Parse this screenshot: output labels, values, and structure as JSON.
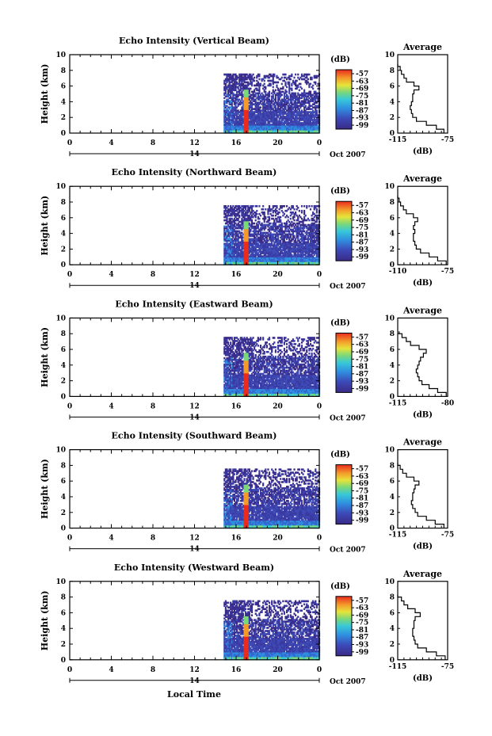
{
  "figure": {
    "xlabel": "Local Time",
    "date_label": "Oct 2007",
    "day_label": "14",
    "average_title": "Average",
    "average_xlabel": "(dB)",
    "colorbar_label": "(dB)"
  },
  "chart_data": [
    {
      "type": "heatmap",
      "title": "Echo Intensity (Vertical Beam)",
      "ylabel": "Height (km)",
      "xlim": [
        0,
        24
      ],
      "ylim": [
        0,
        10
      ],
      "x_ticks": [
        "0",
        "4",
        "8",
        "12",
        "16",
        "20",
        "0"
      ],
      "y_ticks": [
        "0",
        "2",
        "4",
        "6",
        "8",
        "10"
      ],
      "data_x_range": [
        14.8,
        24
      ],
      "colorbar_ticks": [
        "-57",
        "-63",
        "-69",
        "-75",
        "-81",
        "-87",
        "-93",
        "-99"
      ],
      "strong_echo_time": 16.9,
      "average": {
        "xlim": [
          -115,
          -75
        ],
        "x_ticks": [
          "-115",
          "-75"
        ],
        "height": [
          0,
          0.5,
          1,
          1.5,
          2,
          2.5,
          3,
          3.5,
          4,
          4.5,
          5,
          5.5,
          6,
          6.5,
          7,
          7.5,
          8,
          8.5
        ],
        "db": [
          -78,
          -84,
          -92,
          -100,
          -103,
          -104,
          -105,
          -104,
          -103,
          -103,
          -102,
          -98,
          -102,
          -108,
          -110,
          -112,
          -113,
          -115
        ]
      }
    },
    {
      "type": "heatmap",
      "title": "Echo Intensity (Northward Beam)",
      "ylabel": "Height (km)",
      "xlim": [
        0,
        24
      ],
      "ylim": [
        0,
        10
      ],
      "x_ticks": [
        "0",
        "4",
        "8",
        "12",
        "16",
        "20",
        "0"
      ],
      "y_ticks": [
        "0",
        "2",
        "4",
        "6",
        "8",
        "10"
      ],
      "data_x_range": [
        14.8,
        24
      ],
      "colorbar_ticks": [
        "-57",
        "-63",
        "-69",
        "-75",
        "-81",
        "-87",
        "-93",
        "-99"
      ],
      "strong_echo_time": 16.9,
      "average": {
        "xlim": [
          -110,
          -75
        ],
        "x_ticks": [
          "-110",
          "-75"
        ],
        "height": [
          0,
          0.5,
          1,
          1.5,
          2,
          2.5,
          3,
          3.5,
          4,
          4.5,
          5,
          5.5,
          6,
          6.5,
          7,
          7.5,
          8,
          8.5
        ],
        "db": [
          -76,
          -82,
          -88,
          -94,
          -97,
          -98,
          -99,
          -99,
          -98,
          -99,
          -98,
          -96,
          -99,
          -104,
          -106,
          -108,
          -109,
          -110
        ]
      }
    },
    {
      "type": "heatmap",
      "title": "Echo Intensity (Eastward Beam)",
      "ylabel": "Height (km)",
      "xlim": [
        0,
        24
      ],
      "ylim": [
        0,
        10
      ],
      "x_ticks": [
        "0",
        "4",
        "8",
        "12",
        "16",
        "20",
        "0"
      ],
      "y_ticks": [
        "0",
        "2",
        "4",
        "6",
        "8",
        "10"
      ],
      "data_x_range": [
        14.8,
        24
      ],
      "colorbar_ticks": [
        "-57",
        "-63",
        "-69",
        "-75",
        "-81",
        "-87",
        "-93",
        "-99"
      ],
      "strong_echo_time": 16.9,
      "average": {
        "xlim": [
          -115,
          -80
        ],
        "x_ticks": [
          "-115",
          "-80"
        ],
        "height": [
          0,
          0.5,
          1,
          1.5,
          2,
          2.5,
          3,
          3.5,
          4,
          4.5,
          5,
          5.5,
          6,
          6.5,
          7,
          7.5,
          8
        ],
        "db": [
          -81,
          -87,
          -93,
          -98,
          -100,
          -101,
          -102,
          -101,
          -100,
          -99,
          -97,
          -95,
          -100,
          -106,
          -109,
          -112,
          -114
        ]
      }
    },
    {
      "type": "heatmap",
      "title": "Echo Intensity (Southward Beam)",
      "ylabel": "Height (km)",
      "xlim": [
        0,
        24
      ],
      "ylim": [
        0,
        10
      ],
      "x_ticks": [
        "0",
        "4",
        "8",
        "12",
        "16",
        "20",
        "0"
      ],
      "y_ticks": [
        "0",
        "2",
        "4",
        "6",
        "8",
        "10"
      ],
      "data_x_range": [
        14.8,
        24
      ],
      "colorbar_ticks": [
        "-57",
        "-63",
        "-69",
        "-75",
        "-81",
        "-87",
        "-93",
        "-99"
      ],
      "strong_echo_time": 16.9,
      "average": {
        "xlim": [
          -115,
          -75
        ],
        "x_ticks": [
          "-115",
          "-75"
        ],
        "height": [
          0,
          0.5,
          1,
          1.5,
          2,
          2.5,
          3,
          3.5,
          4,
          4.5,
          5,
          5.5,
          6,
          6.5,
          7,
          7.5,
          8
        ],
        "db": [
          -78,
          -85,
          -92,
          -99,
          -101,
          -103,
          -104,
          -103,
          -103,
          -102,
          -101,
          -98,
          -102,
          -108,
          -111,
          -113,
          -115
        ]
      }
    },
    {
      "type": "heatmap",
      "title": "Echo Intensity (Westward Beam)",
      "ylabel": "Height (km)",
      "xlim": [
        0,
        24
      ],
      "ylim": [
        0,
        10
      ],
      "x_ticks": [
        "0",
        "4",
        "8",
        "12",
        "16",
        "20",
        "0"
      ],
      "y_ticks": [
        "0",
        "2",
        "4",
        "6",
        "8",
        "10"
      ],
      "data_x_range": [
        14.8,
        24
      ],
      "colorbar_ticks": [
        "-57",
        "-63",
        "-69",
        "-75",
        "-81",
        "-87",
        "-93",
        "-99"
      ],
      "strong_echo_time": 16.9,
      "average": {
        "xlim": [
          -115,
          -75
        ],
        "x_ticks": [
          "-115",
          "-75"
        ],
        "height": [
          0,
          0.5,
          1,
          1.5,
          2,
          2.5,
          3,
          3.5,
          4,
          4.5,
          5,
          5.5,
          6,
          6.5,
          7,
          7.5,
          8
        ],
        "db": [
          -77,
          -84,
          -92,
          -99,
          -101,
          -102,
          -103,
          -103,
          -102,
          -102,
          -101,
          -97,
          -101,
          -107,
          -110,
          -112,
          -115
        ]
      }
    }
  ]
}
